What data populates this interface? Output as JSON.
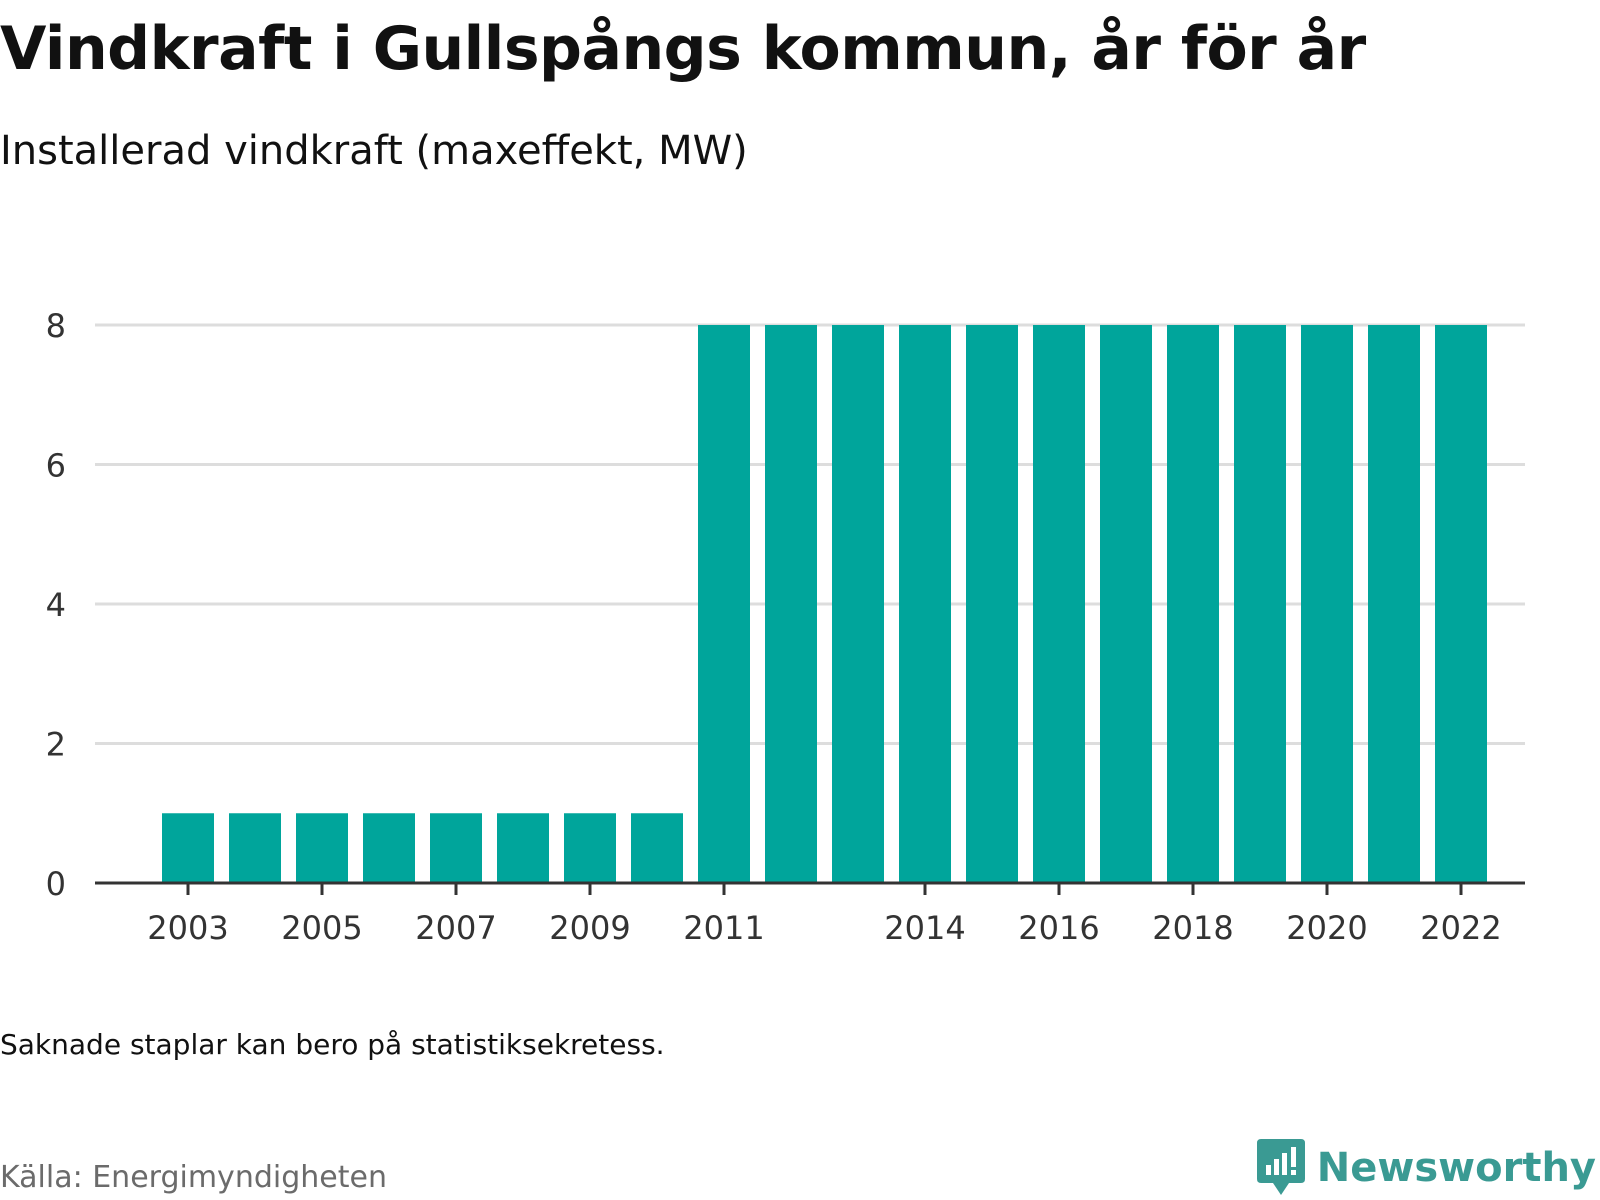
{
  "header": {
    "title": "Vindkraft i Gullspångs kommun, år för år",
    "subtitle": "Installerad vindkraft (maxeffekt, MW)"
  },
  "footer": {
    "note": "Saknade staplar kan bero på statistiksekretess.",
    "source": "Källa: Energimyndigheten",
    "brand": "Newsworthy"
  },
  "colors": {
    "bar": "#00a59b",
    "grid": "#dddddd",
    "axis": "#333333",
    "brand": "#3a9a93"
  },
  "chart_data": {
    "type": "bar",
    "title": "Vindkraft i Gullspångs kommun, år för år",
    "subtitle": "Installerad vindkraft (maxeffekt, MW)",
    "categories": [
      2003,
      2004,
      2005,
      2006,
      2007,
      2008,
      2009,
      2010,
      2011,
      2012,
      2013,
      2014,
      2015,
      2016,
      2017,
      2018,
      2019,
      2020,
      2021,
      2022
    ],
    "values": [
      1,
      1,
      1,
      1,
      1,
      1,
      1,
      1,
      8,
      8,
      8,
      8,
      8,
      8,
      8,
      8,
      8,
      8,
      8,
      8
    ],
    "x_tick_labels": [
      "2003",
      "2005",
      "2007",
      "2009",
      "2011",
      "2014",
      "2016",
      "2018",
      "2020",
      "2022"
    ],
    "y_ticks": [
      0,
      2,
      4,
      6,
      8
    ],
    "ylim": [
      0,
      8
    ],
    "grid": true,
    "legend": "none"
  }
}
